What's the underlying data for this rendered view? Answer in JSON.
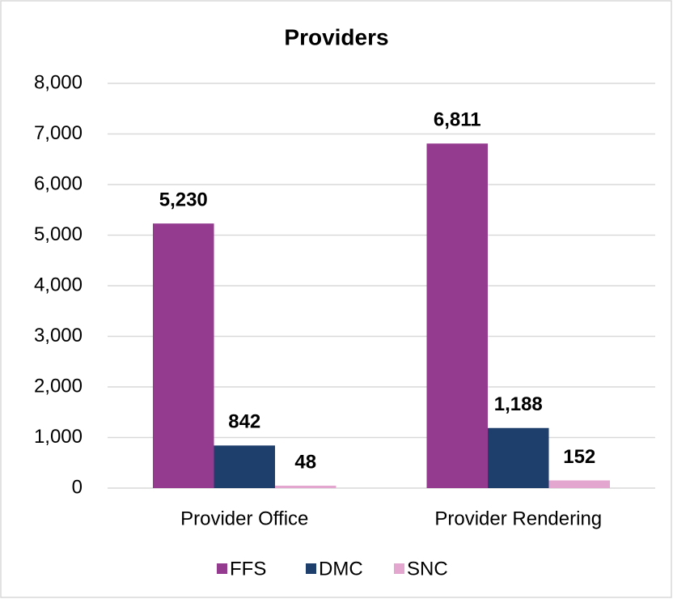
{
  "chart_data": {
    "type": "bar",
    "title": "Providers",
    "categories": [
      "Provider Office",
      "Provider Rendering"
    ],
    "series": [
      {
        "name": "FFS",
        "color": "#943a8f",
        "values": [
          5230,
          6811
        ],
        "value_labels": [
          "5,230",
          "6,811"
        ]
      },
      {
        "name": "DMC",
        "color": "#1e3f6c",
        "values": [
          842,
          1188
        ],
        "value_labels": [
          "842",
          "1,188"
        ]
      },
      {
        "name": "SNC",
        "color": "#e3a6cf",
        "values": [
          48,
          152
        ],
        "value_labels": [
          "48",
          "152"
        ]
      }
    ],
    "ylim": [
      0,
      8000
    ],
    "yticks": [
      0,
      {
        "value": 1000,
        "label": "1,000"
      },
      {
        "value": 2000,
        "label": "2,000"
      },
      {
        "value": 3000,
        "label": "3,000"
      },
      {
        "value": 4000,
        "label": "4,000"
      },
      {
        "value": 5000,
        "label": "5,000"
      },
      {
        "value": 6000,
        "label": "6,000"
      },
      {
        "value": 7000,
        "label": "7,000"
      },
      {
        "value": 8000,
        "label": "8,000"
      }
    ],
    "grid": true,
    "legend": "bottom"
  }
}
